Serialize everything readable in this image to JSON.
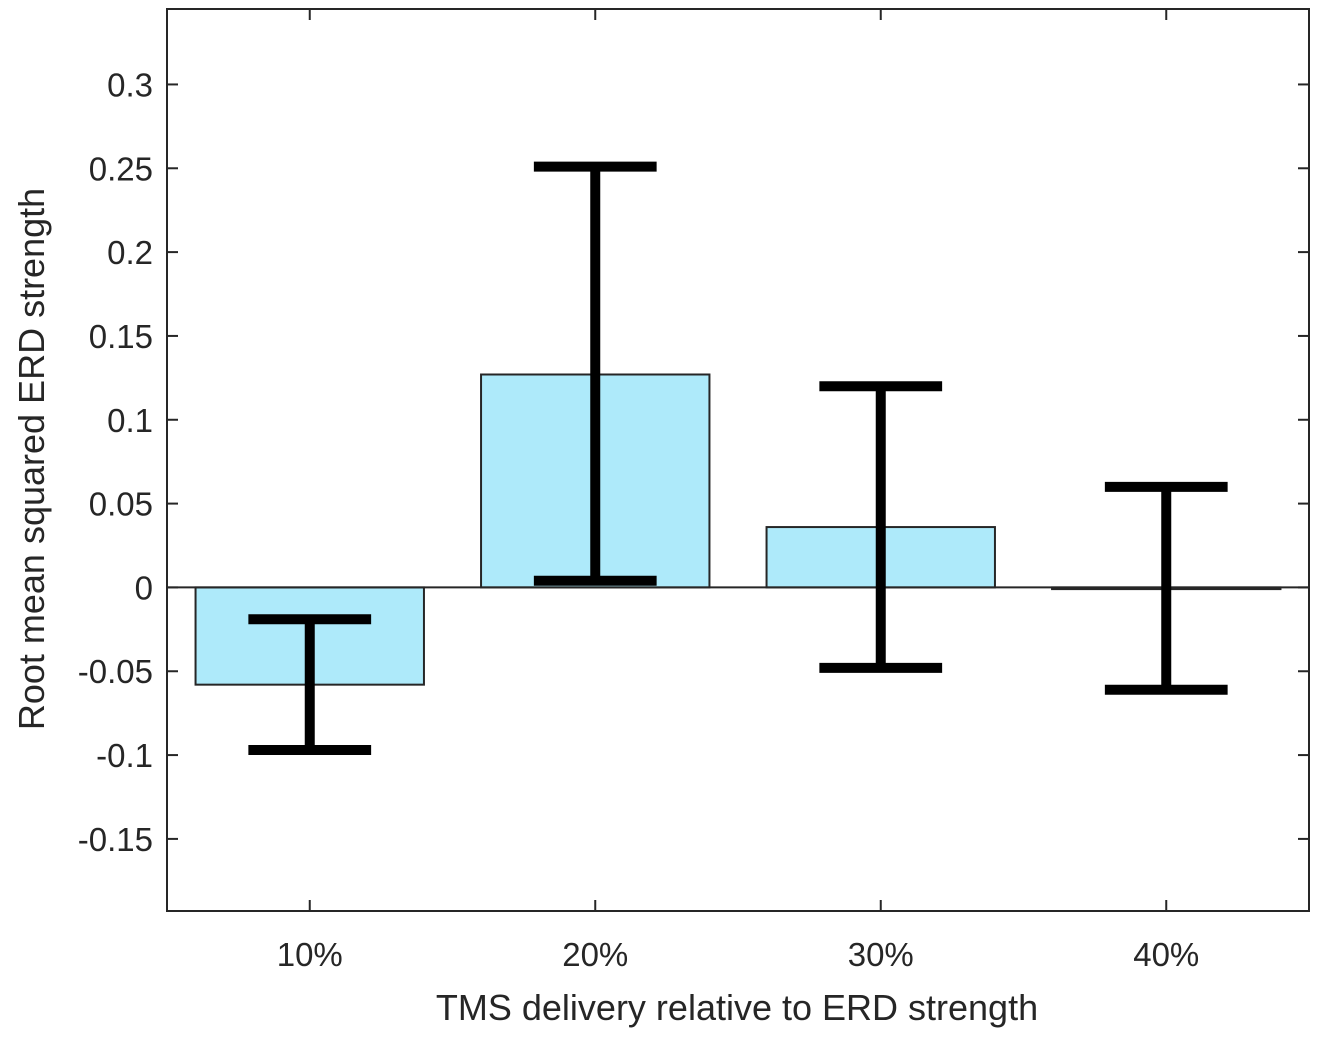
{
  "chart_data": {
    "type": "bar",
    "title": "",
    "xlabel": "TMS delivery relative to ERD strength",
    "ylabel": "Root mean squared ERD strength",
    "categories": [
      "10%",
      "20%",
      "30%",
      "40%"
    ],
    "values": [
      -0.058,
      0.127,
      0.036,
      -0.001
    ],
    "error_lower": [
      -0.097,
      0.004,
      -0.048,
      -0.061
    ],
    "error_upper": [
      -0.019,
      0.251,
      0.12,
      0.06
    ],
    "ylim": [
      -0.193,
      0.345
    ],
    "yticks": [
      -0.15,
      -0.1,
      -0.05,
      0,
      0.05,
      0.1,
      0.15,
      0.2,
      0.25,
      0.3
    ],
    "ytick_labels": [
      "-0.15",
      "-0.1",
      "-0.05",
      "0",
      "0.05",
      "0.1",
      "0.15",
      "0.2",
      "0.25",
      "0.3"
    ],
    "grid": false,
    "legend": "none",
    "colors": {
      "bar_fill": "#aeeafa",
      "bar_edge": "#262626",
      "error_bar": "#000000",
      "axis": "#262626"
    }
  }
}
